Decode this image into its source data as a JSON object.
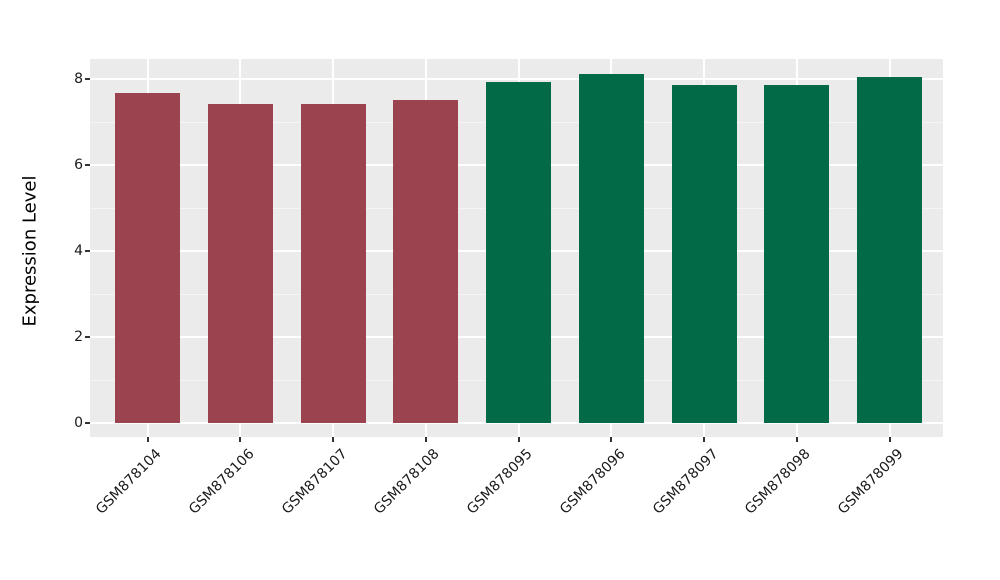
{
  "figure": {
    "background": "#FFFFFF"
  },
  "chart_data": {
    "type": "bar",
    "title": "",
    "xlabel": "",
    "ylabel": "Expression Level",
    "categories": [
      "GSM878104",
      "GSM878106",
      "GSM878107",
      "GSM878108",
      "GSM878095",
      "GSM878096",
      "GSM878097",
      "GSM878098",
      "GSM878099"
    ],
    "series": [
      {
        "name": "Expression Level",
        "values": [
          7.68,
          7.43,
          7.43,
          7.51,
          7.94,
          8.12,
          7.86,
          7.86,
          8.05
        ]
      }
    ],
    "bar_colors": [
      "#9C4350",
      "#9C4350",
      "#9C4350",
      "#9C4350",
      "#036A48",
      "#036A48",
      "#036A48",
      "#036A48",
      "#036A48"
    ],
    "group_palette": [
      {
        "name": "maroon-group",
        "color": "#9C4350",
        "categories": [
          "GSM878104",
          "GSM878106",
          "GSM878107",
          "GSM878108"
        ]
      },
      {
        "name": "green-group",
        "color": "#036A48",
        "categories": [
          "GSM878095",
          "GSM878096",
          "GSM878097",
          "GSM878098",
          "GSM878099"
        ]
      }
    ],
    "y_ticks": [
      0,
      2,
      4,
      6,
      8
    ],
    "y_minor_ticks": [
      1,
      3,
      5,
      7
    ],
    "ylim": [
      -0.41,
      8.52
    ],
    "x_tick_rotation_deg": 45,
    "legend_position": "none",
    "style": {
      "panel_background": "#EBEBEB",
      "major_grid_color": "#FFFFFF",
      "minor_grid_color": "#F5F5F5",
      "axis_text_color": "#1a1a1a",
      "tick_mark_color": "#333333"
    }
  }
}
